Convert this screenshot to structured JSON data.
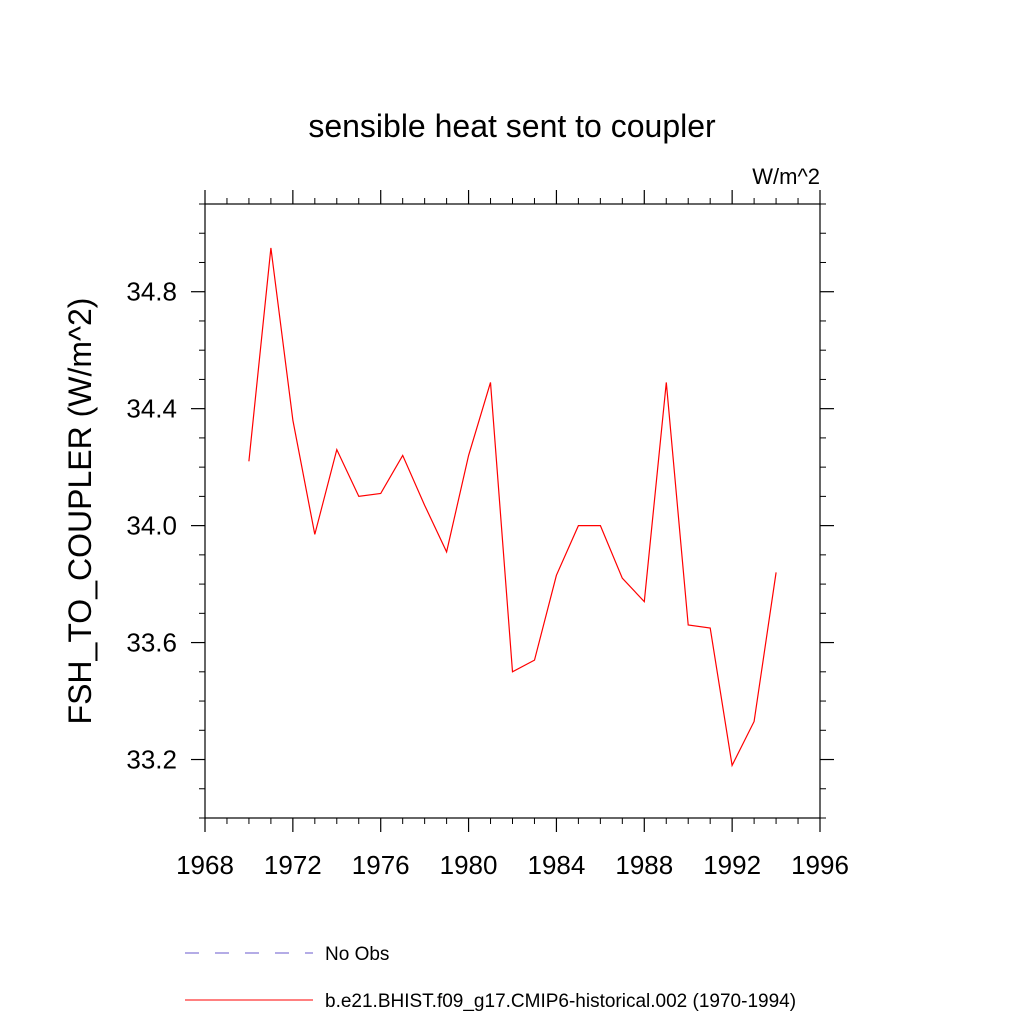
{
  "chart_data": {
    "type": "line",
    "title": "sensible heat sent to coupler",
    "units_label": "W/m^2",
    "ylabel": "FSH_TO_COUPLER  (W/m^2)",
    "xlabel": "",
    "xlim": [
      1968,
      1996
    ],
    "ylim": [
      33.0,
      35.1
    ],
    "x_ticks": [
      1968,
      1972,
      1976,
      1980,
      1984,
      1988,
      1992,
      1996
    ],
    "x_tick_labels": [
      "1968",
      "1972",
      "1976",
      "1980",
      "1984",
      "1988",
      "1992",
      "1996"
    ],
    "y_ticks": [
      33.2,
      33.6,
      34.0,
      34.4,
      34.8
    ],
    "y_tick_labels": [
      "33.2",
      "33.6",
      "34.0",
      "34.4",
      "34.8"
    ],
    "grid": false,
    "legend_position": "bottom",
    "legend": [
      {
        "label": "No Obs",
        "color": "#6a5acd",
        "style": "dashed"
      },
      {
        "label": "b.e21.BHIST.f09_g17.CMIP6-historical.002 (1970-1994)",
        "color": "#ff0000",
        "style": "solid"
      }
    ],
    "series": [
      {
        "name": "b.e21.BHIST.f09_g17.CMIP6-historical.002 (1970-1994)",
        "color": "#ff0000",
        "x": [
          1970,
          1971,
          1972,
          1973,
          1974,
          1975,
          1976,
          1977,
          1978,
          1979,
          1980,
          1981,
          1982,
          1983,
          1984,
          1985,
          1986,
          1987,
          1988,
          1989,
          1990,
          1991,
          1992,
          1993,
          1994
        ],
        "values": [
          34.22,
          34.95,
          34.36,
          33.97,
          34.26,
          34.1,
          34.11,
          34.24,
          34.07,
          33.91,
          34.24,
          34.49,
          33.5,
          33.54,
          33.83,
          34.0,
          34.0,
          33.82,
          33.74,
          34.49,
          33.66,
          33.65,
          33.18,
          33.33,
          33.84
        ]
      }
    ]
  }
}
